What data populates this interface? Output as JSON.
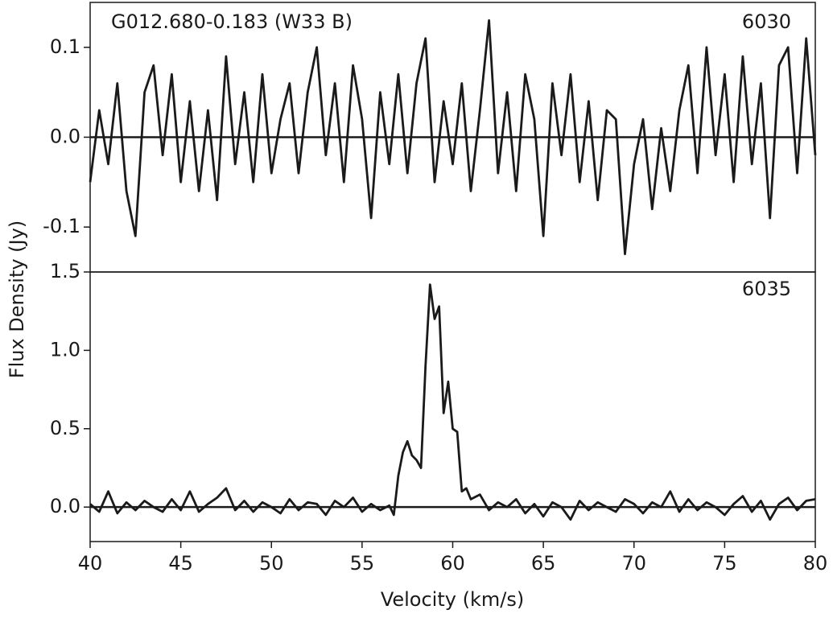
{
  "chart_data": [
    {
      "type": "line",
      "title": "G012.680-0.183 (W33 B)",
      "panel_label": "6030",
      "ylabel": "Flux Density (Jy)",
      "color": "#1a1a1a",
      "hline": 0,
      "xlim": [
        40,
        80
      ],
      "ylim": [
        -0.15,
        0.15
      ],
      "yticks": [
        -0.1,
        {
          "value": 0,
          "label": "0.0"
        },
        0.1
      ],
      "x": [
        40,
        40.5,
        41,
        41.5,
        42,
        42.5,
        43,
        43.5,
        44,
        44.5,
        45,
        45.5,
        46,
        46.5,
        47,
        47.5,
        48,
        48.5,
        49,
        49.5,
        50,
        50.5,
        51,
        51.5,
        52,
        52.5,
        53,
        53.5,
        54,
        54.5,
        55,
        55.5,
        56,
        56.5,
        57,
        57.5,
        58,
        58.5,
        59,
        59.5,
        60,
        60.5,
        61,
        61.5,
        62,
        62.5,
        63,
        63.5,
        64,
        64.5,
        65,
        65.5,
        66,
        66.5,
        67,
        67.5,
        68,
        68.5,
        69,
        69.5,
        70,
        70.5,
        71,
        71.5,
        72,
        72.5,
        73,
        73.5,
        74,
        74.5,
        75,
        75.5,
        76,
        76.5,
        77,
        77.5,
        78,
        78.5,
        79,
        79.5,
        80
      ],
      "values": [
        -0.05,
        0.03,
        -0.03,
        0.06,
        -0.06,
        -0.11,
        0.05,
        0.08,
        -0.02,
        0.07,
        -0.05,
        0.04,
        -0.06,
        0.03,
        -0.07,
        0.09,
        -0.03,
        0.05,
        -0.05,
        0.07,
        -0.04,
        0.02,
        0.06,
        -0.04,
        0.05,
        0.1,
        -0.02,
        0.06,
        -0.05,
        0.08,
        0.02,
        -0.09,
        0.05,
        -0.03,
        0.07,
        -0.04,
        0.06,
        0.11,
        -0.05,
        0.04,
        -0.03,
        0.06,
        -0.06,
        0.03,
        0.13,
        -0.04,
        0.05,
        -0.06,
        0.07,
        0.02,
        -0.11,
        0.06,
        -0.02,
        0.07,
        -0.05,
        0.04,
        -0.07,
        0.03,
        0.02,
        -0.13,
        -0.03,
        0.02,
        -0.08,
        0.01,
        -0.06,
        0.03,
        0.08,
        -0.04,
        0.1,
        -0.02,
        0.07,
        -0.05,
        0.09,
        -0.03,
        0.06,
        -0.09,
        0.08,
        0.1,
        -0.04,
        0.11,
        -0.02
      ]
    },
    {
      "type": "line",
      "panel_label": "6035",
      "xlabel": "Velocity (km/s)",
      "color": "#1a1a1a",
      "hline": 0,
      "xlim": [
        40,
        80
      ],
      "ylim": [
        -0.22,
        1.5
      ],
      "xticks": [
        40,
        45,
        50,
        55,
        60,
        65,
        70,
        75,
        80
      ],
      "yticks": [
        {
          "value": 0,
          "label": "0.0"
        },
        0.5,
        {
          "value": 1,
          "label": "1.0"
        },
        1.5
      ],
      "x": [
        40,
        40.5,
        41,
        41.5,
        42,
        42.5,
        43,
        43.5,
        44,
        44.5,
        45,
        45.5,
        46,
        46.5,
        47,
        47.5,
        48,
        48.5,
        49,
        49.5,
        50,
        50.5,
        51,
        51.5,
        52,
        52.5,
        53,
        53.5,
        54,
        54.5,
        55,
        55.5,
        56,
        56.5,
        56.75,
        57,
        57.25,
        57.5,
        57.75,
        58,
        58.25,
        58.5,
        58.75,
        59,
        59.25,
        59.5,
        59.75,
        60,
        60.25,
        60.5,
        60.75,
        61,
        61.5,
        62,
        62.5,
        63,
        63.5,
        64,
        64.5,
        65,
        65.5,
        66,
        66.5,
        67,
        67.5,
        68,
        68.5,
        69,
        69.5,
        70,
        70.5,
        71,
        71.5,
        72,
        72.5,
        73,
        73.5,
        74,
        74.5,
        75,
        75.5,
        76,
        76.5,
        77,
        77.5,
        78,
        78.5,
        79,
        79.5,
        80
      ],
      "values": [
        0.02,
        -0.03,
        0.1,
        -0.04,
        0.03,
        -0.02,
        0.04,
        0,
        -0.03,
        0.05,
        -0.02,
        0.1,
        -0.03,
        0.02,
        0.06,
        0.12,
        -0.02,
        0.04,
        -0.03,
        0.03,
        0,
        -0.04,
        0.05,
        -0.02,
        0.03,
        0.02,
        -0.05,
        0.04,
        0,
        0.06,
        -0.03,
        0.02,
        -0.02,
        0.01,
        -0.05,
        0.2,
        0.35,
        0.42,
        0.33,
        0.3,
        0.25,
        0.9,
        1.42,
        1.2,
        1.28,
        0.6,
        0.8,
        0.5,
        0.48,
        0.1,
        0.12,
        0.05,
        0.08,
        -0.02,
        0.03,
        0,
        0.05,
        -0.04,
        0.02,
        -0.06,
        0.03,
        0,
        -0.08,
        0.04,
        -0.02,
        0.03,
        0,
        -0.03,
        0.05,
        0.02,
        -0.04,
        0.03,
        0,
        0.1,
        -0.03,
        0.05,
        -0.02,
        0.03,
        0,
        -0.05,
        0.02,
        0.07,
        -0.03,
        0.04,
        -0.08,
        0.02,
        0.06,
        -0.02,
        0.04,
        0.05
      ]
    }
  ]
}
